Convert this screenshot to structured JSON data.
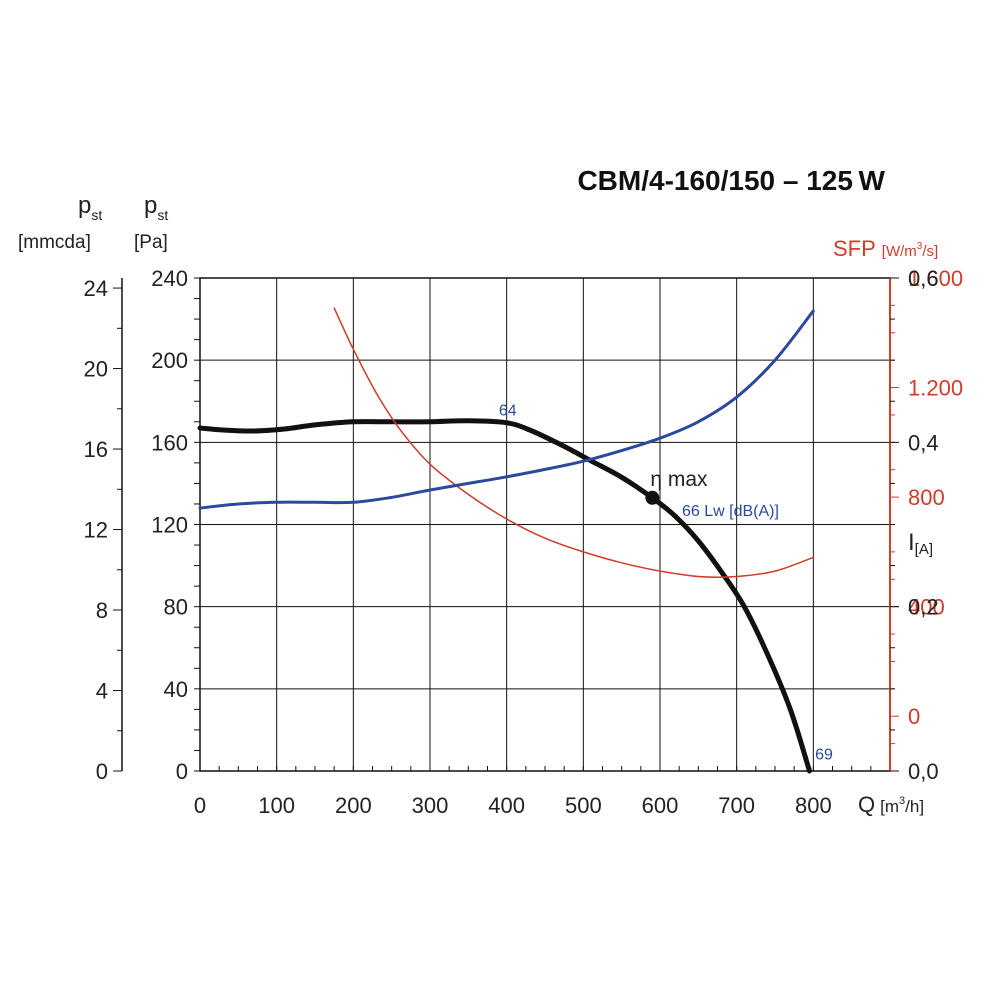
{
  "chart_data": {
    "type": "line",
    "title": "CBM/4-160/150 – 125 W",
    "x_axis": {
      "label": "Q",
      "unit_prefix": "[m",
      "unit_sup": "3",
      "unit_suffix": "/h]",
      "min": 0,
      "max": 900,
      "ticks": [
        0,
        100,
        200,
        300,
        400,
        500,
        600,
        700,
        800
      ],
      "tick_labels": [
        "0",
        "100",
        "200",
        "300",
        "400",
        "500",
        "600",
        "700",
        "800"
      ]
    },
    "y_axes": {
      "mmcda": {
        "label_main": "p",
        "label_sub": "st",
        "unit": "[mmcda]",
        "min": 0,
        "max": 24.5,
        "ticks": [
          0,
          4,
          8,
          12,
          16,
          20,
          24
        ],
        "tick_labels": [
          "0",
          "4",
          "8",
          "12",
          "16",
          "20",
          "24"
        ]
      },
      "pa": {
        "label_main": "p",
        "label_sub": "st",
        "unit": "[Pa]",
        "min": 0,
        "max": 240,
        "ticks": [
          0,
          40,
          80,
          120,
          160,
          200,
          240
        ],
        "tick_labels": [
          "0",
          "40",
          "80",
          "120",
          "160",
          "200",
          "240"
        ]
      },
      "sfp": {
        "label": "SFP",
        "unit_prefix": "[W/m",
        "unit_sup": "3",
        "unit_suffix": "/s]",
        "min": -200,
        "max": 1600,
        "ticks": [
          0,
          400,
          800,
          1200,
          1600
        ],
        "tick_labels": [
          "0",
          "400",
          "800",
          "1.200",
          "1.600"
        ],
        "color": "#d23a2a"
      },
      "current": {
        "label": "I",
        "unit": "[A]",
        "min": 0,
        "max": 0.6,
        "ticks": [
          0,
          0.2,
          0.4,
          0.6
        ],
        "tick_labels": [
          "0,0",
          "0,2",
          "0,4",
          "0,6"
        ]
      }
    },
    "series": [
      {
        "key": "pressure",
        "axis": "pa",
        "color": "#111111",
        "x": [
          0,
          30,
          70,
          110,
          150,
          200,
          250,
          300,
          350,
          400,
          430,
          470,
          510,
          550,
          590,
          620,
          650,
          680,
          710,
          740,
          770,
          795
        ],
        "y": [
          167,
          166,
          165.5,
          166.5,
          168.5,
          170,
          170,
          170,
          170.5,
          169.5,
          166,
          159,
          151,
          143,
          133,
          124,
          112,
          97,
          80,
          57,
          30,
          0
        ]
      },
      {
        "key": "sfp",
        "axis": "sfp",
        "color": "#d23a2a",
        "x": [
          175,
          200,
          230,
          260,
          300,
          350,
          400,
          450,
          500,
          550,
          600,
          650,
          700,
          750,
          800
        ],
        "y": [
          1490,
          1340,
          1180,
          1050,
          920,
          810,
          720,
          650,
          600,
          560,
          530,
          510,
          510,
          530,
          580
        ]
      },
      {
        "key": "current",
        "axis": "current",
        "color": "#2b4a9c",
        "x": [
          0,
          50,
          100,
          150,
          200,
          250,
          300,
          350,
          400,
          450,
          500,
          550,
          600,
          650,
          700,
          750,
          800
        ],
        "y": [
          0.32,
          0.325,
          0.327,
          0.327,
          0.327,
          0.333,
          0.342,
          0.35,
          0.358,
          0.367,
          0.377,
          0.39,
          0.405,
          0.425,
          0.455,
          0.5,
          0.56
        ]
      }
    ],
    "annotations": [
      {
        "key": "eta",
        "text": "η max",
        "x": 590,
        "y": 133
      },
      {
        "key": "lw64",
        "text": "64",
        "x": 395,
        "y": 173
      },
      {
        "key": "lw66",
        "text": "66 Lw [dB(A)]",
        "x": 630,
        "y": 126
      },
      {
        "key": "lw69",
        "text": "69",
        "x": 805,
        "y": 6
      }
    ],
    "grid": true
  }
}
